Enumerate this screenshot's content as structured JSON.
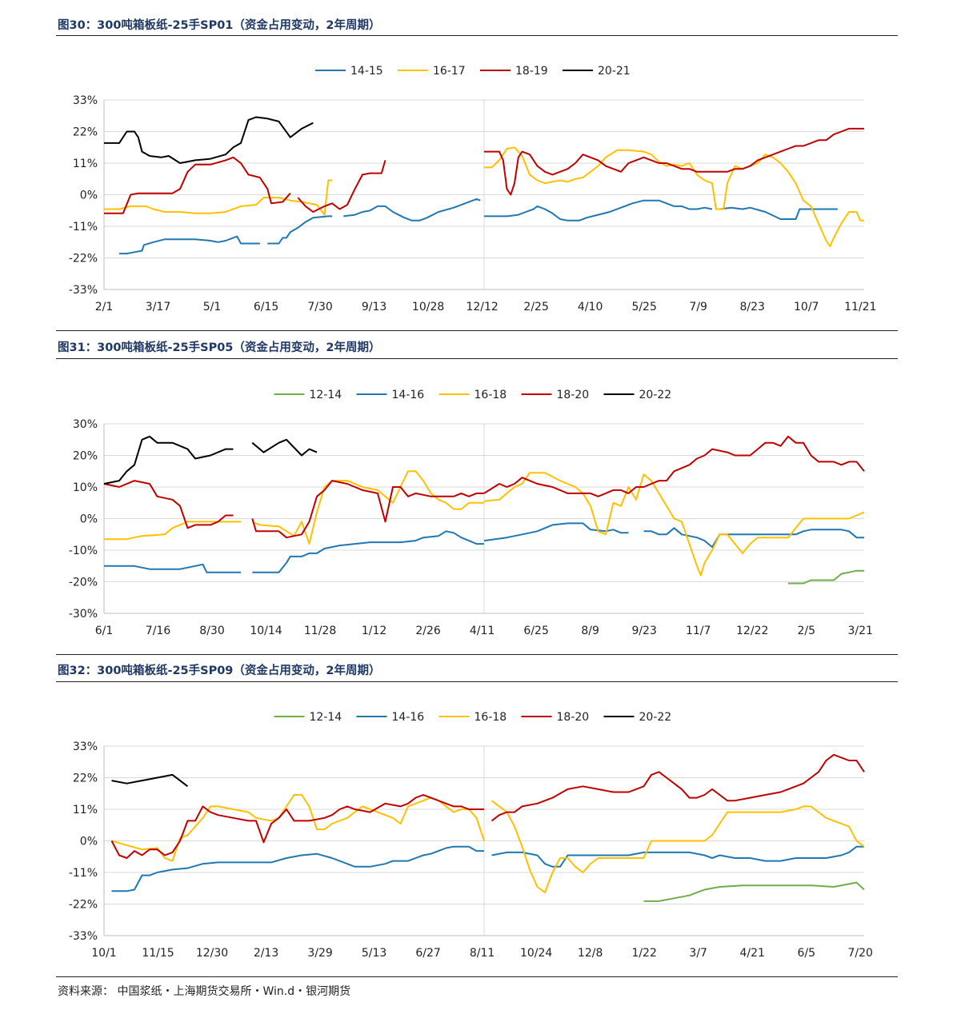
{
  "source_note": "资料来源： 中国浆纸・上海期货交易所・Win.d・银河期货",
  "chart_data": [
    {
      "type": "line",
      "title": "图30：300吨箱板纸-25手SP01（资金占用变动，2年周期）",
      "ylim": [
        -33,
        33
      ],
      "yticks": [
        "33%",
        "22%",
        "11%",
        "0%",
        "-11%",
        "-22%",
        "-33%"
      ],
      "xticks": [
        "2/1",
        "3/17",
        "5/1",
        "6/15",
        "7/30",
        "9/13",
        "10/28",
        "12/12",
        "2/25",
        "4/10",
        "5/25",
        "7/9",
        "8/23",
        "10/7",
        "11/21"
      ],
      "x_range": [
        0,
        100
      ],
      "year_divider": 50,
      "grid": true,
      "legend_position": "top-center",
      "series": [
        {
          "name": "14-15",
          "color": "#1f77b4",
          "points": [
            [
              4,
              -20.5
            ],
            [
              6,
              -20.5
            ],
            [
              8,
              -20
            ],
            [
              10,
              -19.5
            ],
            [
              10.5,
              -17.5
            ],
            [
              13,
              -16.5
            ],
            [
              16,
              -15.5
            ],
            [
              20,
              -15.5
            ],
            [
              24,
              -15.5
            ],
            [
              28,
              -16
            ],
            [
              30,
              -16.5
            ],
            [
              32,
              -16
            ],
            [
              35,
              -14.5
            ],
            [
              36,
              -17
            ],
            [
              41,
              -17
            ],
            [
              41,
              null
            ],
            [
              38,
              null
            ],
            [
              43,
              -17
            ],
            [
              46,
              -17
            ],
            [
              47,
              -15
            ],
            [
              48,
              -15
            ],
            [
              49,
              -13
            ],
            [
              51,
              -11.5
            ],
            [
              53,
              -9.5
            ],
            [
              55,
              -8
            ],
            [
              59,
              -7.5
            ],
            [
              60,
              -7.5
            ],
            [
              52,
              null
            ],
            [
              63,
              -7.5
            ],
            [
              66,
              -7
            ],
            [
              68,
              -6
            ],
            [
              70,
              -5.5
            ],
            [
              72,
              -4
            ],
            [
              74,
              -4
            ],
            [
              76,
              -6
            ],
            [
              79,
              -8
            ],
            [
              81,
              -9
            ],
            [
              83,
              -9
            ],
            [
              85,
              -8
            ],
            [
              88,
              -6
            ],
            [
              92,
              -4.5
            ],
            [
              95,
              -3
            ],
            [
              98,
              -1.5
            ],
            [
              99,
              -2
            ],
            [
              100,
              null
            ]
          ]
        },
        {
          "name": "16-17",
          "color": "#ffc000",
          "points": [
            [
              0,
              -5
            ],
            [
              4,
              -5
            ],
            [
              7,
              -4
            ],
            [
              11,
              -4
            ],
            [
              13,
              -5
            ],
            [
              16,
              -6
            ],
            [
              20,
              -6
            ],
            [
              24,
              -6.5
            ],
            [
              28,
              -6.5
            ],
            [
              32,
              -6
            ],
            [
              36,
              -4
            ],
            [
              40,
              -3.5
            ],
            [
              42,
              -1
            ],
            [
              46,
              -1
            ],
            [
              49,
              -2
            ],
            [
              52,
              -2.5
            ],
            [
              56,
              -3.5
            ],
            [
              58,
              -7
            ],
            [
              59,
              5
            ],
            [
              60,
              5
            ],
            [
              59,
              null
            ],
            [
              60,
              null
            ]
          ]
        },
        {
          "name": "18-19",
          "color": "#c00000",
          "points": [
            [
              0,
              -6.5
            ],
            [
              5,
              -6.5
            ],
            [
              7,
              0
            ],
            [
              9,
              0.5
            ],
            [
              13,
              0.5
            ],
            [
              18,
              0.5
            ],
            [
              20,
              2
            ],
            [
              22,
              8
            ],
            [
              24,
              10.5
            ],
            [
              28,
              10.5
            ],
            [
              32,
              12
            ],
            [
              34,
              13
            ],
            [
              36,
              11
            ],
            [
              38,
              7
            ],
            [
              41,
              6
            ],
            [
              43,
              2
            ],
            [
              44,
              -3
            ],
            [
              47,
              -2.5
            ],
            [
              49,
              0.5
            ],
            [
              50,
              null
            ],
            [
              51,
              -1
            ],
            [
              53,
              -4
            ],
            [
              55,
              -6
            ],
            [
              58,
              -4
            ],
            [
              60,
              -3
            ],
            [
              62,
              -5
            ],
            [
              64,
              -3.5
            ],
            [
              66,
              2
            ],
            [
              68,
              7
            ],
            [
              70,
              7.5
            ],
            [
              73,
              7.5
            ],
            [
              74,
              12
            ]
          ]
        },
        {
          "name": "20-21",
          "color": "#000000",
          "points": [
            [
              0,
              18
            ],
            [
              4,
              18
            ],
            [
              6,
              22
            ],
            [
              8,
              22
            ],
            [
              9,
              20
            ],
            [
              10,
              15
            ],
            [
              12,
              13.5
            ],
            [
              15,
              13
            ],
            [
              17,
              13.5
            ],
            [
              20,
              11
            ],
            [
              24,
              12
            ],
            [
              28,
              12.5
            ],
            [
              32,
              14
            ],
            [
              34,
              16.5
            ],
            [
              36,
              18
            ],
            [
              38,
              26
            ],
            [
              40,
              27
            ],
            [
              43,
              26.5
            ],
            [
              46,
              25.5
            ],
            [
              49,
              20
            ],
            [
              52,
              23
            ],
            [
              55,
              25
            ]
          ]
        }
      ],
      "series_2": [
        {
          "name": "14-15",
          "color": "#1f77b4",
          "points": [
            [
              0,
              -7.5
            ],
            [
              6,
              -7.5
            ],
            [
              9,
              -7
            ],
            [
              11,
              -6
            ],
            [
              13,
              -5
            ],
            [
              14,
              -4
            ],
            [
              16,
              -5
            ],
            [
              18,
              -6.5
            ],
            [
              20,
              -8.5
            ],
            [
              22,
              -9
            ],
            [
              25,
              -9
            ],
            [
              27,
              -8
            ],
            [
              30,
              -7
            ],
            [
              33,
              -6
            ],
            [
              36,
              -4.5
            ],
            [
              39,
              -3
            ],
            [
              42,
              -2
            ],
            [
              46,
              -2
            ],
            [
              48,
              -3
            ],
            [
              50,
              -4
            ],
            [
              52,
              -4
            ],
            [
              54,
              -5
            ],
            [
              56,
              -5
            ],
            [
              58,
              -4.5
            ],
            [
              60,
              -5
            ],
            [
              61,
              null
            ],
            [
              62,
              -5
            ],
            [
              65,
              -4.5
            ],
            [
              68,
              -5
            ],
            [
              70,
              -4.5
            ],
            [
              74,
              -6
            ],
            [
              78,
              -8.5
            ],
            [
              82,
              -8.5
            ],
            [
              83,
              -5
            ],
            [
              88,
              -5
            ],
            [
              92,
              -5
            ],
            [
              93,
              -5
            ]
          ]
        },
        {
          "name": "16-17",
          "color": "#ffc000",
          "points": [
            [
              0,
              9.5
            ],
            [
              2,
              9.5
            ],
            [
              4,
              12
            ],
            [
              6,
              16
            ],
            [
              8,
              16.5
            ],
            [
              10,
              13.5
            ],
            [
              12,
              7
            ],
            [
              14,
              5
            ],
            [
              16,
              4
            ],
            [
              18,
              4.5
            ],
            [
              20,
              5
            ],
            [
              22,
              4.5
            ],
            [
              24,
              5.5
            ],
            [
              26,
              6
            ],
            [
              28,
              8
            ],
            [
              30,
              10
            ],
            [
              32,
              13
            ],
            [
              35,
              15.5
            ],
            [
              38,
              15.5
            ],
            [
              42,
              15
            ],
            [
              44,
              14
            ],
            [
              46,
              11.5
            ],
            [
              48,
              10
            ],
            [
              50,
              10.5
            ],
            [
              52,
              10
            ],
            [
              54,
              11
            ],
            [
              56,
              7
            ],
            [
              58,
              5
            ],
            [
              60,
              4
            ],
            [
              61,
              -5
            ],
            [
              63,
              -5
            ],
            [
              64,
              4
            ],
            [
              66,
              10
            ],
            [
              68,
              9
            ],
            [
              70,
              10
            ],
            [
              72,
              11
            ],
            [
              74,
              14
            ],
            [
              76,
              13
            ],
            [
              78,
              11
            ],
            [
              80,
              8
            ],
            [
              82,
              4
            ],
            [
              84,
              -2
            ],
            [
              86,
              -4
            ],
            [
              88,
              -10
            ],
            [
              90,
              -16
            ],
            [
              91,
              -18
            ],
            [
              92,
              -15
            ],
            [
              94,
              -10
            ],
            [
              96,
              -6
            ],
            [
              98,
              -6
            ],
            [
              99,
              -9
            ],
            [
              100,
              -9
            ]
          ]
        },
        {
          "name": "18-19",
          "color": "#c00000",
          "points": [
            [
              0,
              15
            ],
            [
              4,
              15
            ],
            [
              5,
              12
            ],
            [
              6,
              2
            ],
            [
              7,
              0
            ],
            [
              8,
              4
            ],
            [
              9,
              13
            ],
            [
              10,
              15
            ],
            [
              12,
              14
            ],
            [
              14,
              10
            ],
            [
              16,
              8
            ],
            [
              18,
              7
            ],
            [
              20,
              8
            ],
            [
              22,
              9
            ],
            [
              24,
              11
            ],
            [
              26,
              14
            ],
            [
              28,
              13
            ],
            [
              30,
              12
            ],
            [
              32,
              10
            ],
            [
              34,
              9
            ],
            [
              36,
              8
            ],
            [
              38,
              11
            ],
            [
              40,
              12
            ],
            [
              42,
              13
            ],
            [
              44,
              12
            ],
            [
              46,
              11
            ],
            [
              48,
              11
            ],
            [
              50,
              10
            ],
            [
              52,
              9
            ],
            [
              54,
              9
            ],
            [
              56,
              8
            ],
            [
              58,
              8
            ],
            [
              60,
              8
            ],
            [
              62,
              8
            ],
            [
              64,
              8
            ],
            [
              66,
              9
            ],
            [
              68,
              9
            ],
            [
              70,
              10
            ],
            [
              72,
              12
            ],
            [
              74,
              13
            ],
            [
              76,
              14
            ],
            [
              78,
              15
            ],
            [
              80,
              16
            ],
            [
              82,
              17
            ],
            [
              84,
              17
            ],
            [
              86,
              18
            ],
            [
              88,
              19
            ],
            [
              90,
              19
            ],
            [
              92,
              21
            ],
            [
              94,
              22
            ],
            [
              96,
              23
            ],
            [
              98,
              23
            ],
            [
              100,
              23
            ]
          ]
        }
      ]
    }
  ]
}
